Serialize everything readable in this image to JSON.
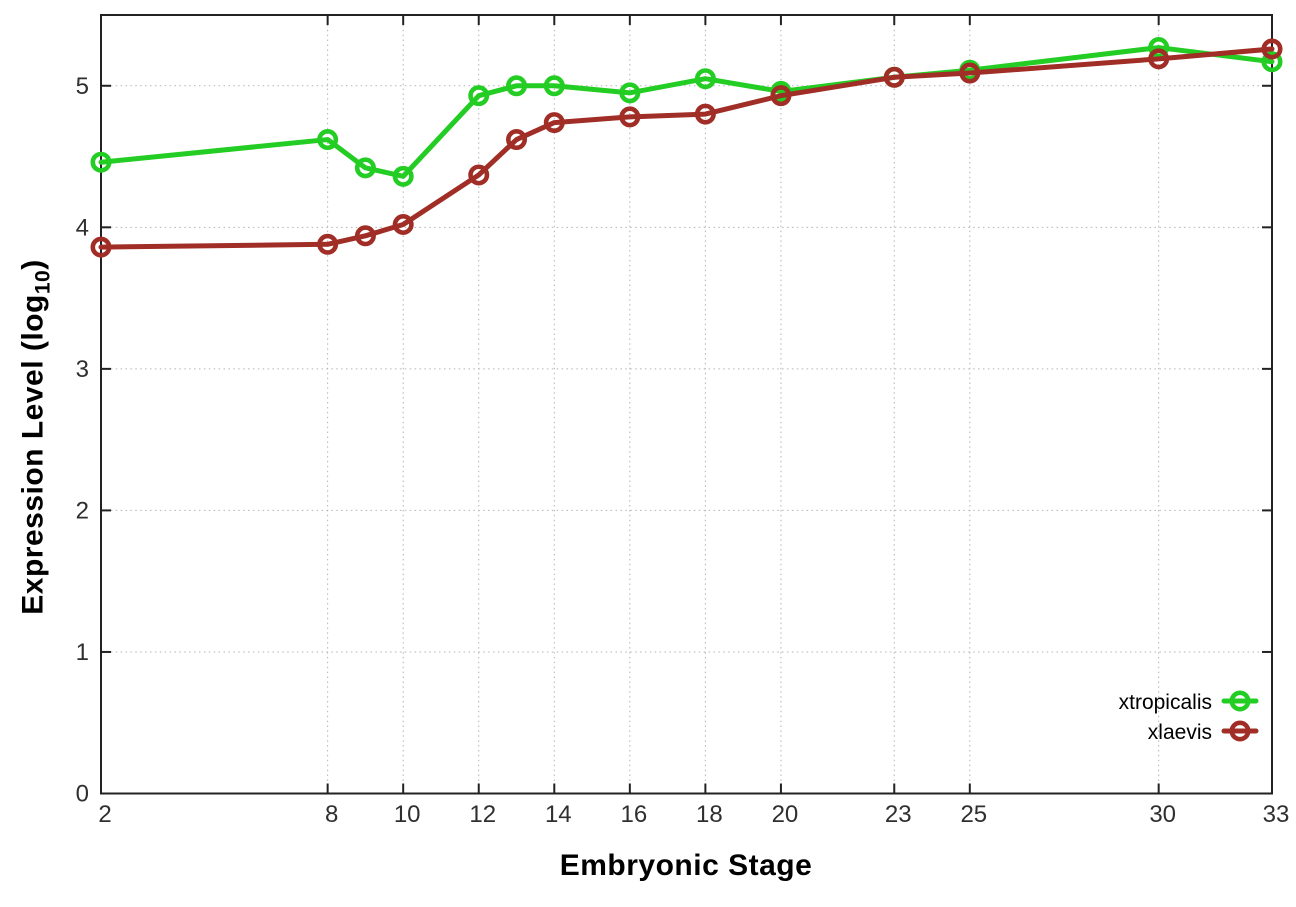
{
  "chart_data": {
    "type": "line",
    "title": "",
    "xlabel": "Embryonic Stage",
    "ylabel": {
      "main": "Expression Level (log",
      "sub": "10",
      "close": ")"
    },
    "x": [
      2,
      8,
      9,
      10,
      12,
      13,
      14,
      16,
      18,
      20,
      23,
      25,
      30,
      33
    ],
    "series": [
      {
        "name": "xtropicalis",
        "color": "#23cd23",
        "values": [
          4.46,
          4.62,
          4.42,
          4.36,
          4.93,
          5.0,
          5.0,
          4.95,
          5.05,
          4.96,
          5.06,
          5.11,
          5.27,
          5.17
        ]
      },
      {
        "name": "xlaevis",
        "color": "#a02e26",
        "values": [
          3.86,
          3.88,
          3.94,
          4.02,
          4.37,
          4.62,
          4.74,
          4.78,
          4.8,
          4.93,
          5.06,
          5.09,
          5.19,
          5.26
        ]
      }
    ],
    "xticks": [
      "2",
      "8",
      "10",
      "12",
      "14",
      "16",
      "18",
      "20",
      "23",
      "25",
      "30",
      "33"
    ],
    "xtick_values": [
      2,
      8,
      10,
      12,
      14,
      16,
      18,
      20,
      23,
      25,
      30,
      33
    ],
    "yticks": [
      "0",
      "1",
      "2",
      "3",
      "4",
      "5"
    ],
    "ytick_values": [
      0,
      1,
      2,
      3,
      4,
      5
    ],
    "xlim": [
      2,
      33
    ],
    "ylim": [
      0,
      5.5
    ],
    "grid": true,
    "legend_position": "bottom-right-inside",
    "marker": "open-circle",
    "colors": {
      "background": "#ffffff",
      "axis": "#222222",
      "grid": "#b3b3b3",
      "tick_text": "#2f2f2f",
      "legend_text": "#000000"
    }
  }
}
